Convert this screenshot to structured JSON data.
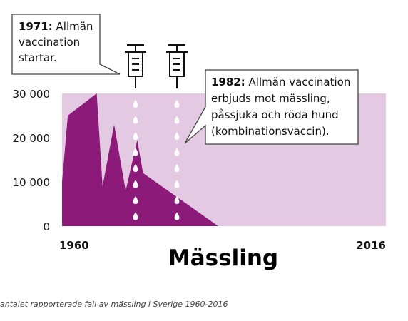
{
  "chart_data": {
    "type": "area",
    "title": "Mässling",
    "caption": "antalet rapporterade fall av mässling i Sverige 1960-2016",
    "x_start_label": "1960",
    "x_end_label": "2016",
    "xlim": [
      1960,
      2016
    ],
    "ylim": [
      0,
      30000
    ],
    "y_ticks": [
      {
        "value": 30000,
        "label": "30 000"
      },
      {
        "value": 20000,
        "label": "20 000"
      },
      {
        "value": 10000,
        "label": "10 000"
      },
      {
        "value": 0,
        "label": "0"
      }
    ],
    "series": [
      {
        "points": [
          [
            1960,
            10000
          ],
          [
            1961,
            25000
          ],
          [
            1966,
            30000
          ],
          [
            1967,
            9000
          ],
          [
            1969,
            23000
          ],
          [
            1971,
            8000
          ],
          [
            1973,
            19500
          ],
          [
            1974,
            12000
          ],
          [
            1987,
            0
          ],
          [
            2016,
            0
          ]
        ]
      }
    ],
    "events": [
      {
        "year": 1971,
        "bold": "1971:",
        "text": "Allmän vaccination startar.",
        "lines": [
          "vaccination",
          "startar."
        ]
      },
      {
        "year": 1982,
        "bold": "1982:",
        "text": "Allmän vaccination erbjuds mot mässling, påssjuka och röda hund (kombinationsvaccin).",
        "lines": [
          "erbjuds mot mässling,",
          "påssjuka och röda hund",
          "(kombinationsvaccin)."
        ]
      }
    ],
    "event_first_line_rest": [
      "Allmän",
      "Allmän vaccination"
    ],
    "colors": {
      "background": "#e4c9e3",
      "area": "#8b1a78",
      "drop": "#ffffff",
      "text": "#111111"
    }
  }
}
